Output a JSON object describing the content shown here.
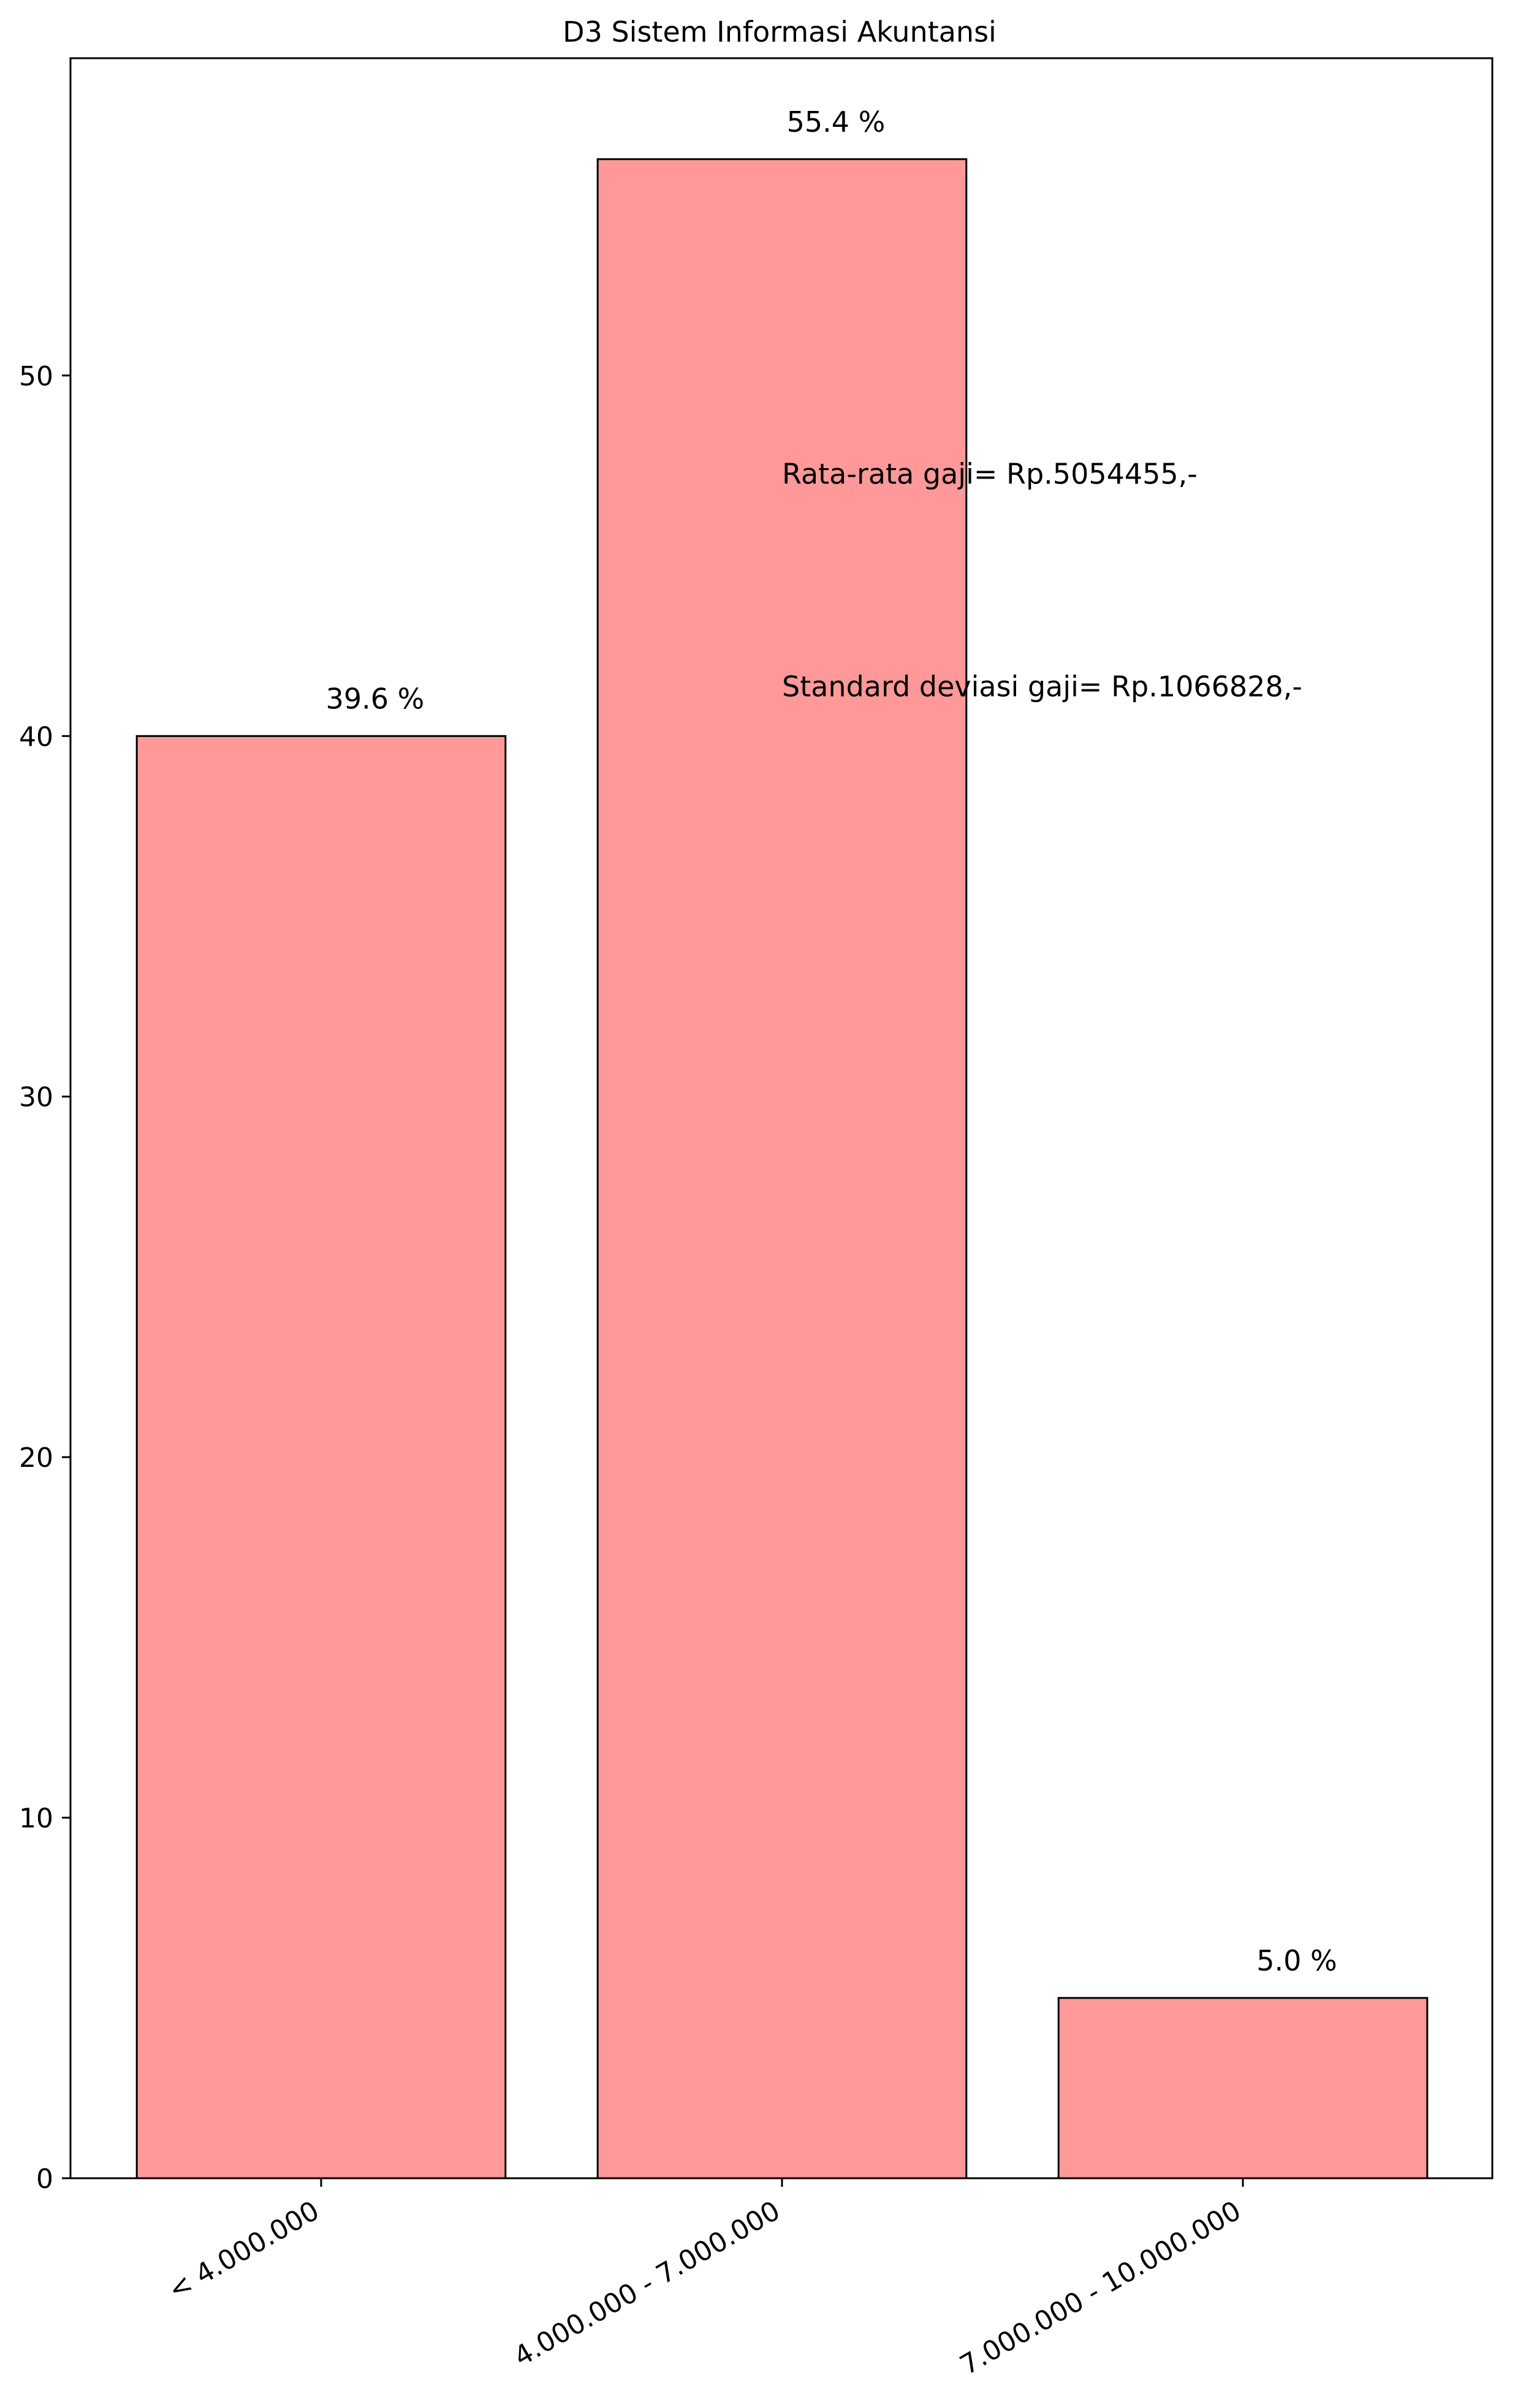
{
  "chart_data": {
    "type": "bar",
    "title": "D3 Sistem Informasi Akuntansi",
    "xlabel": "",
    "ylabel": "",
    "categories": [
      "< 4.000.000",
      "4.000.000 - 7.000.000",
      "7.000.000 - 10.000.000"
    ],
    "values": [
      40,
      56,
      5
    ],
    "bar_labels": [
      "39.6 %",
      "55.4 %",
      "5.0 %"
    ],
    "ylim": [
      0,
      58.8
    ],
    "yticks": [
      0,
      10,
      20,
      30,
      40,
      50
    ],
    "grid": false,
    "bar_color": "#ff9999",
    "edge_color": "#000000",
    "annotations": [
      {
        "text": "Rata-rata gaji= Rp.5054455,-",
        "x": 1,
        "y": 47
      },
      {
        "text": "Standard deviasi gaji= Rp.1066828,-",
        "x": 1,
        "y": 41.1
      }
    ]
  }
}
